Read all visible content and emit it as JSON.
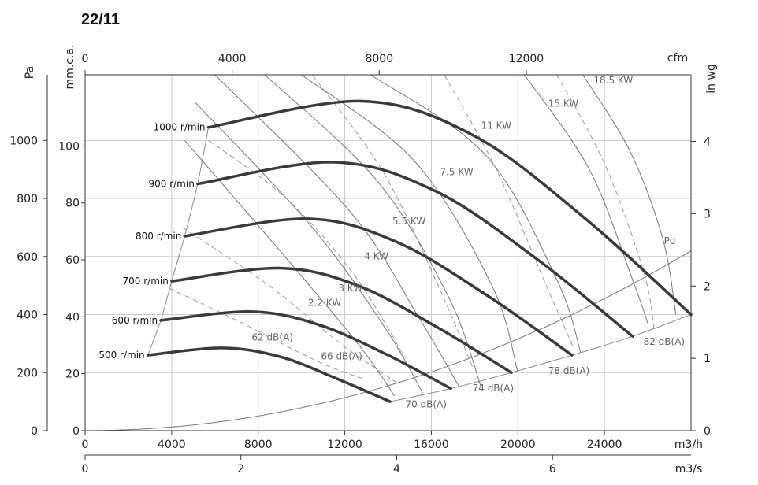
{
  "title": "22/11",
  "chart_data": {
    "type": "line",
    "title": "22/11",
    "axes": {
      "bottom_primary": {
        "label": "m3/h",
        "ticks": [
          "0",
          "4000",
          "8000",
          "12000",
          "16000",
          "20000",
          "24000"
        ],
        "range": [
          0,
          28000
        ]
      },
      "bottom_secondary": {
        "label": "m3/s",
        "ticks": [
          "0",
          "2",
          "4",
          "6"
        ],
        "range": [
          0,
          7.778
        ]
      },
      "top": {
        "label": "cfm",
        "ticks": [
          "0",
          "4000",
          "8000",
          "12000"
        ],
        "range": [
          0,
          16480
        ]
      },
      "left_outer": {
        "label": "Pa",
        "ticks": [
          "0",
          "200",
          "400",
          "600",
          "800",
          "1000"
        ],
        "range": [
          0,
          1226
        ]
      },
      "left_inner": {
        "label": "mm.c.a.",
        "ticks": [
          "0",
          "20",
          "40",
          "60",
          "80",
          "100"
        ],
        "range": [
          0,
          125
        ]
      },
      "right": {
        "label": "in wg",
        "ticks": [
          "0",
          "1",
          "2",
          "3",
          "4"
        ],
        "range": [
          0,
          4.92
        ]
      }
    },
    "grid": true,
    "speed_curves": [
      {
        "name": "500 r/min",
        "points": [
          [
            2900,
            260
          ],
          [
            6300,
            285
          ],
          [
            9000,
            255
          ],
          [
            11600,
            180
          ],
          [
            14100,
            100
          ]
        ]
      },
      {
        "name": "600 r/min",
        "points": [
          [
            3500,
            380
          ],
          [
            7700,
            410
          ],
          [
            10800,
            365
          ],
          [
            14000,
            260
          ],
          [
            16900,
            145
          ]
        ]
      },
      {
        "name": "700 r/min",
        "points": [
          [
            4000,
            515
          ],
          [
            9000,
            560
          ],
          [
            12600,
            500
          ],
          [
            16300,
            355
          ],
          [
            19700,
            200
          ]
        ]
      },
      {
        "name": "800 r/min",
        "points": [
          [
            4600,
            670
          ],
          [
            10300,
            730
          ],
          [
            14400,
            650
          ],
          [
            18600,
            465
          ],
          [
            22500,
            260
          ]
        ]
      },
      {
        "name": "900 r/min",
        "points": [
          [
            5200,
            850
          ],
          [
            11500,
            925
          ],
          [
            16200,
            825
          ],
          [
            20900,
            590
          ],
          [
            25300,
            325
          ]
        ]
      },
      {
        "name": "1000 r/min",
        "points": [
          [
            5700,
            1045
          ],
          [
            12800,
            1135
          ],
          [
            18000,
            1015
          ],
          [
            23200,
            725
          ],
          [
            28000,
            400
          ]
        ]
      }
    ],
    "power_labels": [
      "2.2 KW",
      "3 KW",
      "4 KW",
      "5.5 KW",
      "7.5 KW",
      "11 KW",
      "15 KW",
      "18.5 KW"
    ],
    "noise_labels": [
      "62 dB(A)",
      "66 dB(A)",
      "70 dB(A)",
      "74 dB(A)",
      "78 dB(A)",
      "82 dB(A)"
    ],
    "pd_label": "Pd"
  }
}
